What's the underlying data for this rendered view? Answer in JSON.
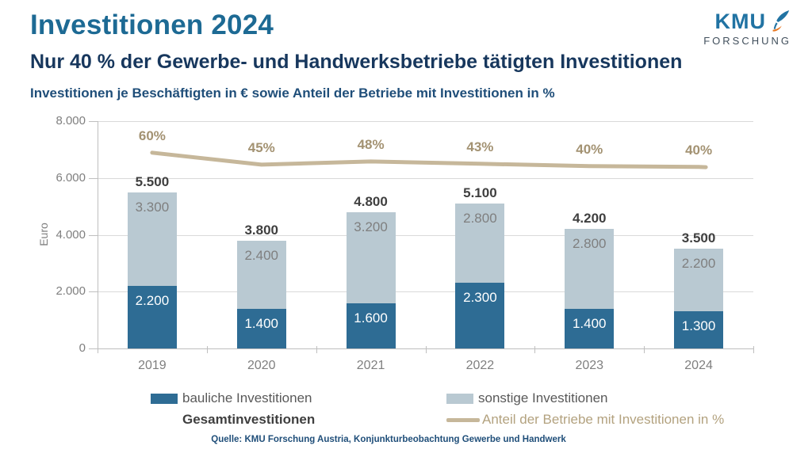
{
  "header": {
    "title": "Investitionen 2024",
    "subtitle": "Nur 40 % der Gewerbe- und Handwerksbetriebe tätigten Investitionen",
    "description": "Investitionen je Beschäftigten in € sowie Anteil der Betriebe mit Investitionen in %"
  },
  "logo": {
    "text": "KMU",
    "subtext": "FORSCHUNG",
    "icon": "feather-icon",
    "colors": {
      "blue": "#2173a3",
      "dark": "#414f5c",
      "orange": "#e87722"
    }
  },
  "chart_data": {
    "type": "bar",
    "stacked": true,
    "title": "Investitionen je Beschäftigten in € sowie Anteil der Betriebe mit Investitionen in %",
    "categories": [
      "2019",
      "2020",
      "2021",
      "2022",
      "2023",
      "2024"
    ],
    "series": [
      {
        "name": "bauliche Investitionen",
        "color": "#2e6c94",
        "values": [
          2200,
          1400,
          1600,
          2300,
          1400,
          1300
        ],
        "labels": [
          "2.200",
          "1.400",
          "1.600",
          "2.300",
          "1.400",
          "1.300"
        ]
      },
      {
        "name": "sonstige Investitionen",
        "color": "#b9c9d2",
        "values": [
          3300,
          2400,
          3200,
          2800,
          2800,
          2200
        ],
        "labels": [
          "3.300",
          "2.400",
          "3.200",
          "2.800",
          "2.800",
          "2.200"
        ]
      }
    ],
    "totals": {
      "name": "Gesamtinvestitionen",
      "values": [
        5500,
        3800,
        4800,
        5100,
        4200,
        3500
      ],
      "labels": [
        "5.500",
        "3.800",
        "4.800",
        "5.100",
        "4.200",
        "3.500"
      ]
    },
    "line": {
      "name": "Anteil der Betriebe mit Investitionen in %",
      "color": "#c6b79a",
      "percent_values": [
        60,
        45,
        48,
        43,
        40,
        40
      ],
      "percent_labels": [
        "60%",
        "45%",
        "48%",
        "43%",
        "40%",
        "40%"
      ],
      "euro_axis_equivalents": [
        6890,
        6470,
        6580,
        6500,
        6420,
        6390
      ]
    },
    "ylabel": "Euro",
    "ylim": [
      0,
      8000
    ],
    "yticks": [
      {
        "value": 8000,
        "label": "8.000"
      },
      {
        "value": 6000,
        "label": "6.000"
      },
      {
        "value": 4000,
        "label": "4.000"
      },
      {
        "value": 2000,
        "label": "2.000"
      },
      {
        "value": 0,
        "label": "0"
      }
    ],
    "grid": true,
    "legend_position": "bottom"
  },
  "legend": {
    "items": [
      {
        "label": "bauliche Investitionen",
        "swatch": "#2e6c94",
        "type": "box"
      },
      {
        "label": "sonstige Investitionen",
        "swatch": "#b9c9d2",
        "type": "box"
      },
      {
        "label": "Gesamtinvestitionen",
        "swatch": null,
        "type": "text"
      },
      {
        "label": "Anteil der Betriebe mit Investitionen in %",
        "swatch": "#c6b79a",
        "type": "line"
      }
    ]
  },
  "source": "Quelle: KMU Forschung Austria, Konjunkturbeobachtung Gewerbe und Handwerk"
}
